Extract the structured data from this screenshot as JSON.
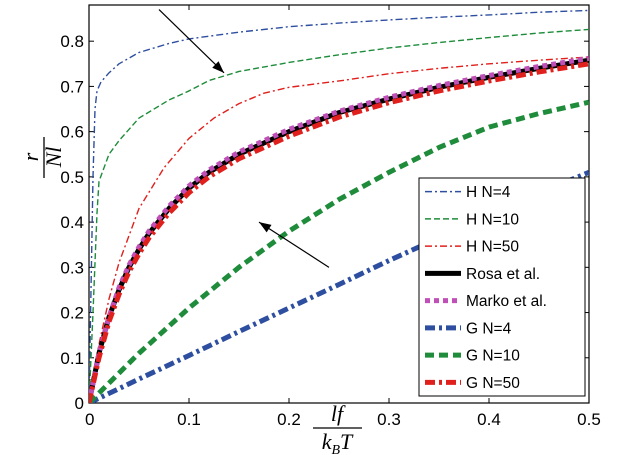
{
  "chart_data": {
    "type": "line",
    "title": "",
    "xlabel": {
      "numerator": "lf",
      "denominator_main": "k",
      "denominator_sub": "B",
      "denominator_tail": "T"
    },
    "ylabel": {
      "numerator": "r",
      "denominator": "Nl"
    },
    "xlim": [
      0,
      0.5
    ],
    "ylim": [
      0,
      0.88
    ],
    "x_ticks": [
      "0",
      "0.1",
      "0.2",
      "0.3",
      "0.4",
      "0.5"
    ],
    "y_ticks": [
      "0",
      "0.1",
      "0.2",
      "0.3",
      "0.4",
      "0.5",
      "0.6",
      "0.7",
      "0.8"
    ],
    "grid": false,
    "legend_position": "bottom-right",
    "series": [
      {
        "name": "H N=4",
        "color": "#2e4fa0",
        "style": "dashdot",
        "weight": "thin",
        "points": [
          [
            0,
            0
          ],
          [
            0.002,
            0.25
          ],
          [
            0.004,
            0.5
          ],
          [
            0.006,
            0.65
          ],
          [
            0.008,
            0.69
          ],
          [
            0.012,
            0.71
          ],
          [
            0.02,
            0.73
          ],
          [
            0.03,
            0.75
          ],
          [
            0.05,
            0.775
          ],
          [
            0.08,
            0.795
          ],
          [
            0.1,
            0.805
          ],
          [
            0.15,
            0.82
          ],
          [
            0.2,
            0.832
          ],
          [
            0.25,
            0.84
          ],
          [
            0.3,
            0.847
          ],
          [
            0.35,
            0.853
          ],
          [
            0.4,
            0.858
          ],
          [
            0.45,
            0.864
          ],
          [
            0.5,
            0.868
          ]
        ]
      },
      {
        "name": "H N=10",
        "color": "#1e8c3a",
        "style": "dashed",
        "weight": "thin",
        "points": [
          [
            0,
            0
          ],
          [
            0.004,
            0.2
          ],
          [
            0.008,
            0.42
          ],
          [
            0.01,
            0.49
          ],
          [
            0.015,
            0.52
          ],
          [
            0.02,
            0.55
          ],
          [
            0.03,
            0.58
          ],
          [
            0.05,
            0.63
          ],
          [
            0.08,
            0.67
          ],
          [
            0.1,
            0.69
          ],
          [
            0.12,
            0.713
          ],
          [
            0.15,
            0.733
          ],
          [
            0.2,
            0.753
          ],
          [
            0.25,
            0.77
          ],
          [
            0.3,
            0.785
          ],
          [
            0.35,
            0.797
          ],
          [
            0.4,
            0.808
          ],
          [
            0.45,
            0.818
          ],
          [
            0.5,
            0.826
          ]
        ]
      },
      {
        "name": "H N=50",
        "color": "#e0201c",
        "style": "dashdot",
        "weight": "thin",
        "points": [
          [
            0,
            0
          ],
          [
            0.01,
            0.13
          ],
          [
            0.02,
            0.23
          ],
          [
            0.03,
            0.31
          ],
          [
            0.05,
            0.43
          ],
          [
            0.075,
            0.52
          ],
          [
            0.1,
            0.585
          ],
          [
            0.125,
            0.63
          ],
          [
            0.15,
            0.662
          ],
          [
            0.175,
            0.685
          ],
          [
            0.2,
            0.698
          ],
          [
            0.25,
            0.712
          ],
          [
            0.3,
            0.728
          ],
          [
            0.35,
            0.74
          ],
          [
            0.4,
            0.75
          ],
          [
            0.45,
            0.758
          ],
          [
            0.5,
            0.765
          ]
        ]
      },
      {
        "name": "Rosa et al.",
        "color": "#000000",
        "style": "solid",
        "weight": "thick",
        "points": [
          [
            0,
            0
          ],
          [
            0.01,
            0.11
          ],
          [
            0.02,
            0.19
          ],
          [
            0.03,
            0.25
          ],
          [
            0.04,
            0.3
          ],
          [
            0.05,
            0.34
          ],
          [
            0.06,
            0.375
          ],
          [
            0.08,
            0.43
          ],
          [
            0.1,
            0.475
          ],
          [
            0.12,
            0.51
          ],
          [
            0.15,
            0.55
          ],
          [
            0.2,
            0.6
          ],
          [
            0.25,
            0.642
          ],
          [
            0.3,
            0.672
          ],
          [
            0.35,
            0.698
          ],
          [
            0.4,
            0.72
          ],
          [
            0.45,
            0.74
          ],
          [
            0.5,
            0.758
          ]
        ]
      },
      {
        "name": "Marko et al.",
        "color": "#c050b8",
        "style": "dotted",
        "weight": "thick",
        "points": [
          [
            0,
            0
          ],
          [
            0.01,
            0.11
          ],
          [
            0.02,
            0.19
          ],
          [
            0.03,
            0.255
          ],
          [
            0.04,
            0.305
          ],
          [
            0.05,
            0.345
          ],
          [
            0.06,
            0.38
          ],
          [
            0.08,
            0.435
          ],
          [
            0.1,
            0.48
          ],
          [
            0.12,
            0.515
          ],
          [
            0.15,
            0.555
          ],
          [
            0.2,
            0.605
          ],
          [
            0.25,
            0.645
          ],
          [
            0.3,
            0.676
          ],
          [
            0.35,
            0.702
          ],
          [
            0.4,
            0.724
          ],
          [
            0.45,
            0.744
          ],
          [
            0.5,
            0.762
          ]
        ]
      },
      {
        "name": "G N=4",
        "color": "#2e4fa0",
        "style": "dashdot",
        "weight": "thick",
        "points": [
          [
            0,
            0
          ],
          [
            0.05,
            0.053
          ],
          [
            0.1,
            0.105
          ],
          [
            0.15,
            0.158
          ],
          [
            0.2,
            0.21
          ],
          [
            0.25,
            0.262
          ],
          [
            0.3,
            0.315
          ],
          [
            0.35,
            0.365
          ],
          [
            0.4,
            0.415
          ],
          [
            0.45,
            0.465
          ],
          [
            0.5,
            0.51
          ]
        ]
      },
      {
        "name": "G N=10",
        "color": "#1e8c3a",
        "style": "dashed",
        "weight": "thick",
        "points": [
          [
            0,
            0
          ],
          [
            0.025,
            0.055
          ],
          [
            0.05,
            0.11
          ],
          [
            0.075,
            0.16
          ],
          [
            0.1,
            0.21
          ],
          [
            0.125,
            0.255
          ],
          [
            0.15,
            0.3
          ],
          [
            0.2,
            0.38
          ],
          [
            0.25,
            0.45
          ],
          [
            0.3,
            0.51
          ],
          [
            0.35,
            0.565
          ],
          [
            0.4,
            0.61
          ],
          [
            0.45,
            0.64
          ],
          [
            0.5,
            0.665
          ]
        ]
      },
      {
        "name": "G N=50",
        "color": "#e0201c",
        "style": "dashdot",
        "weight": "thick",
        "points": [
          [
            0,
            0
          ],
          [
            0.01,
            0.1
          ],
          [
            0.02,
            0.18
          ],
          [
            0.03,
            0.24
          ],
          [
            0.04,
            0.29
          ],
          [
            0.05,
            0.33
          ],
          [
            0.06,
            0.365
          ],
          [
            0.08,
            0.42
          ],
          [
            0.1,
            0.465
          ],
          [
            0.12,
            0.5
          ],
          [
            0.15,
            0.54
          ],
          [
            0.2,
            0.59
          ],
          [
            0.25,
            0.632
          ],
          [
            0.3,
            0.664
          ],
          [
            0.35,
            0.69
          ],
          [
            0.4,
            0.712
          ],
          [
            0.45,
            0.732
          ],
          [
            0.5,
            0.75
          ]
        ]
      }
    ],
    "annotations": [
      {
        "type": "arrow",
        "from": [
          0.07,
          0.87
        ],
        "to": [
          0.135,
          0.73
        ]
      },
      {
        "type": "arrow",
        "from": [
          0.24,
          0.3
        ],
        "to": [
          0.17,
          0.4
        ]
      }
    ]
  }
}
